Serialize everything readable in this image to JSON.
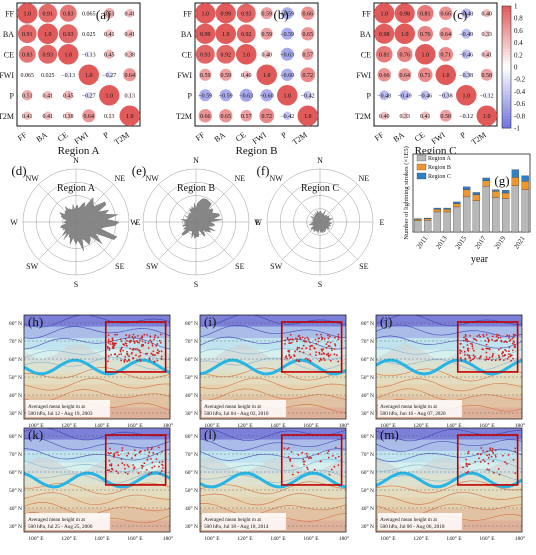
{
  "colors": {
    "positive": "#e15a5a",
    "negative": "#6f73e0",
    "grid": "#444444",
    "polar_fill": "#808080",
    "bar_a": "#b8b8b8",
    "bar_b": "#f0962e",
    "bar_c": "#2f7fc8",
    "map_ocean": "#a7dce9",
    "map_land": "#cfcfcf",
    "jet": "#28b4e4",
    "region_box": "#c00000",
    "fire": "#d42020"
  },
  "panel_labels": [
    "(a)",
    "(b)",
    "(c)",
    "(d)",
    "(e)",
    "(f)",
    "(g)",
    "(h)",
    "(i)",
    "(j)",
    "(k)",
    "(l)",
    "(m)"
  ],
  "chart_data": [
    {
      "type": "heatmap",
      "id": "a",
      "title": "Region A",
      "row_labels": [
        "FF",
        "BA",
        "CE",
        "FWI",
        "P",
        "T2M"
      ],
      "col_labels": [
        "FF",
        "BA",
        "CE",
        "FWI",
        "P",
        "T2M"
      ],
      "values": [
        [
          1.0,
          0.91,
          0.83,
          0.065,
          0.51,
          0.41
        ],
        [
          0.91,
          1.0,
          0.93,
          0.025,
          0.41,
          0.41
        ],
        [
          0.83,
          0.93,
          1.0,
          -0.13,
          0.45,
          0.38
        ],
        [
          0.065,
          0.025,
          -0.13,
          1.0,
          -0.27,
          0.64
        ],
        [
          0.51,
          0.41,
          0.45,
          -0.27,
          1.0,
          0.13
        ],
        [
          0.41,
          0.41,
          0.38,
          0.64,
          0.13,
          1.0
        ]
      ],
      "labels": [
        [
          "1.0",
          "0.91",
          "0.83",
          "0.065",
          "0.51",
          "0.41"
        ],
        [
          "0.91",
          "1.0",
          "0.93",
          "0.025",
          "0.41",
          "0.41"
        ],
        [
          "0.83",
          "0.93",
          "1.0",
          "−0.13",
          "0.45",
          "0.38"
        ],
        [
          "0.065",
          "0.025",
          "−0.13",
          "1.0",
          "−0.27",
          "0.64"
        ],
        [
          "0.51",
          "0.41",
          "0.45",
          "−0.27",
          "1.0",
          "0.13"
        ],
        [
          "0.41",
          "0.41",
          "0.38",
          "0.64",
          "0.13",
          "1.0"
        ]
      ]
    },
    {
      "type": "heatmap",
      "id": "b",
      "title": "Region B",
      "row_labels": [
        "FF",
        "BA",
        "CE",
        "FWI",
        "P",
        "T2M"
      ],
      "col_labels": [
        "FF",
        "BA",
        "CE",
        "FWI",
        "P",
        "T2M"
      ],
      "values": [
        [
          1.0,
          0.99,
          0.93,
          0.59,
          -0.59,
          0.66
        ],
        [
          0.99,
          1.0,
          0.92,
          0.59,
          -0.59,
          0.65
        ],
        [
          0.93,
          0.92,
          1.0,
          0.4,
          -0.63,
          0.57
        ],
        [
          0.59,
          0.59,
          0.4,
          1.0,
          -0.6,
          0.72
        ],
        [
          -0.59,
          -0.59,
          -0.63,
          -0.6,
          1.0,
          -0.42
        ],
        [
          0.66,
          0.65,
          0.57,
          0.72,
          -0.42,
          1.0
        ]
      ],
      "labels": [
        [
          "1.0",
          "0.99",
          "0.93",
          "0.59",
          "−0.59",
          "0.66"
        ],
        [
          "0.99",
          "1.0",
          "0.92",
          "0.59",
          "−0.59",
          "0.65"
        ],
        [
          "0.93",
          "0.92",
          "1.0",
          "0.40",
          "−0.63",
          "0.57"
        ],
        [
          "0.59",
          "0.59",
          "0.40",
          "1.0",
          "−0.60",
          "0.72"
        ],
        [
          "−0.59",
          "−0.59",
          "−0.63",
          "−0.60",
          "1.0",
          "−0.42"
        ],
        [
          "0.66",
          "0.65",
          "0.57",
          "0.72",
          "−0.42",
          "1.0"
        ]
      ]
    },
    {
      "type": "heatmap",
      "id": "c",
      "title": "Region C",
      "row_labels": [
        "FF",
        "BA",
        "CE",
        "FWI",
        "P",
        "T2M"
      ],
      "col_labels": [
        "FF",
        "BA",
        "CE",
        "FWI",
        "P",
        "T2M"
      ],
      "values": [
        [
          1.0,
          0.98,
          0.81,
          0.66,
          -0.48,
          0.4
        ],
        [
          0.98,
          1.0,
          0.76,
          0.64,
          -0.49,
          0.33
        ],
        [
          0.81,
          0.76,
          1.0,
          0.71,
          -0.46,
          0.41
        ],
        [
          0.66,
          0.64,
          0.71,
          1.0,
          -0.38,
          0.58
        ],
        [
          -0.48,
          -0.49,
          -0.46,
          -0.38,
          1.0,
          -0.12
        ],
        [
          0.4,
          0.33,
          0.41,
          0.58,
          -0.12,
          1.0
        ]
      ],
      "labels": [
        [
          "1.0",
          "0.98",
          "0.81",
          "0.66",
          "−0.48",
          "0.40"
        ],
        [
          "0.98",
          "1.0",
          "0.76",
          "0.64",
          "−0.49",
          "0.33"
        ],
        [
          "0.81",
          "0.76",
          "1.0",
          "0.71",
          "−0.46",
          "0.41"
        ],
        [
          "0.66",
          "0.64",
          "0.71",
          "1.0",
          "−0.38",
          "0.58"
        ],
        [
          "−0.48",
          "−0.49",
          "−0.46",
          "−0.38",
          "1.0",
          "−0.12"
        ],
        [
          "0.40",
          "0.33",
          "0.41",
          "0.58",
          "−0.12",
          "1.0"
        ]
      ],
      "colorbar": {
        "ticks": [
          "1",
          "0.8",
          "0.6",
          "0.4",
          "0.2",
          "0",
          "-0.2",
          "-0.4",
          "-0.6",
          "-0.8",
          "-1"
        ],
        "range": [
          -1,
          1
        ]
      }
    },
    {
      "type": "polar_area",
      "id": "d",
      "title": "Region A",
      "directions": [
        "N",
        "NE",
        "E",
        "SE",
        "S",
        "SW",
        "W",
        "NW"
      ],
      "relative_radius": [
        0.35,
        0.6,
        0.95,
        0.55,
        0.5,
        0.35,
        0.3,
        0.35
      ]
    },
    {
      "type": "polar_area",
      "id": "e",
      "title": "Region B",
      "directions": [
        "N",
        "NE",
        "E",
        "SE",
        "S",
        "SW",
        "W",
        "NW"
      ],
      "relative_radius": [
        0.35,
        0.55,
        0.45,
        0.3,
        0.3,
        0.35,
        0.3,
        0.25
      ]
    },
    {
      "type": "polar_area",
      "id": "f",
      "title": "Region C",
      "directions": [
        "N",
        "NE",
        "E",
        "SE",
        "S",
        "SW",
        "W",
        "NW"
      ],
      "relative_radius": [
        0.22,
        0.25,
        0.22,
        0.2,
        0.2,
        0.22,
        0.18,
        0.2
      ]
    },
    {
      "type": "bar",
      "id": "g",
      "stacked": true,
      "xlabel": "year",
      "ylabel": "Number of lightning strokes (×1E5)",
      "categories": [
        "2010",
        "2011",
        "2012",
        "2013",
        "2014",
        "2015",
        "2016",
        "2017",
        "2018",
        "2019",
        "2020",
        "2021"
      ],
      "xtick_labels": [
        "2011",
        "2013",
        "2015",
        "2017",
        "2019",
        "2021"
      ],
      "series": [
        {
          "name": "Region A",
          "color_key": "bar_a",
          "values": [
            2.0,
            2.1,
            3.6,
            3.6,
            4.5,
            6.3,
            5.6,
            8.2,
            6.2,
            6.0,
            8.3,
            7.6
          ]
        },
        {
          "name": "Region B",
          "color_key": "bar_b",
          "values": [
            0.3,
            0.3,
            0.5,
            0.5,
            0.6,
            1.3,
            1.1,
            1.0,
            1.1,
            1.0,
            1.5,
            1.5
          ]
        },
        {
          "name": "Region C",
          "color_key": "bar_c",
          "values": [
            0.1,
            0.1,
            0.2,
            0.2,
            0.3,
            0.5,
            0.4,
            0.5,
            0.3,
            0.5,
            1.4,
            1.0
          ]
        }
      ],
      "ylim": [
        0,
        14
      ]
    },
    {
      "type": "map",
      "id": "h",
      "caption_line1": "Averaged mean height m at",
      "caption_line2": "500 hPa, Jul 12 - Aug 19, 2003",
      "fire_density": 0.95
    },
    {
      "type": "map",
      "id": "i",
      "caption_line1": "Averaged mean height m at",
      "caption_line2": "500 hPa, Jul 04 - Aug 02, 2010",
      "fire_density": 0.75
    },
    {
      "type": "map",
      "id": "j",
      "caption_line1": "Averaged mean height m at",
      "caption_line2": "500 hPa, Jun 16 - Aug 07, 2020",
      "fire_density": 0.85
    },
    {
      "type": "map",
      "id": "k",
      "caption_line1": "Averaged mean height m at",
      "caption_line2": "500 hPa, Jul 25 - Aug 25, 2006",
      "fire_density": 0.5
    },
    {
      "type": "map",
      "id": "l",
      "caption_line1": "Averaged mean height m at",
      "caption_line2": "500 hPa, Jul 18 - Aug 18, 2014",
      "fire_density": 0.25
    },
    {
      "type": "map",
      "id": "m",
      "caption_line1": "Averaged mean height m at",
      "caption_line2": "500 hPa, Jul 06 - Aug 06, 2018",
      "fire_density": 0.3
    }
  ],
  "map_axes": {
    "lat_labels": [
      "80° N",
      "70° N",
      "60° N",
      "50° N",
      "40° N",
      "30° N"
    ],
    "lon_labels": [
      "100° E",
      "120° E",
      "140° E",
      "160° E",
      "180°"
    ]
  }
}
